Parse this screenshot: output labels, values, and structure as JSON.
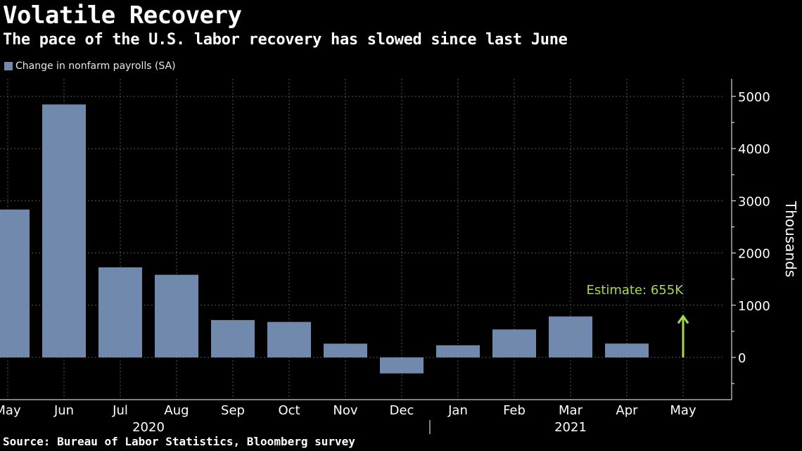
{
  "title": "Volatile Recovery",
  "subtitle": "The pace of the U.S. labor recovery has slowed since last June",
  "source": "Source: Bureau of Labor Statistics, Bloomberg survey",
  "colors": {
    "bar": "#7189ac",
    "annotation": "#a6d854",
    "grid": "#555555",
    "background": "#000000"
  },
  "chart_data": {
    "type": "bar",
    "categories": [
      "May",
      "Jun",
      "Jul",
      "Aug",
      "Sep",
      "Oct",
      "Nov",
      "Dec",
      "Jan",
      "Feb",
      "Mar",
      "Apr",
      "May"
    ],
    "year_labels": [
      {
        "label": "2020",
        "under": [
          "May",
          "Oct"
        ]
      },
      {
        "label": "2021",
        "under": [
          "Jan",
          "May"
        ]
      }
    ],
    "series": [
      {
        "name": "Change in nonfarm payrolls (SA)",
        "values": [
          2833,
          4846,
          1726,
          1583,
          716,
          680,
          264,
          -306,
          233,
          536,
          785,
          266,
          null
        ]
      }
    ],
    "ylabel": "Thousands",
    "yticks": [
      0,
      1000,
      2000,
      3000,
      4000,
      5000
    ],
    "ylim": [
      -800,
      5300
    ],
    "grid": true,
    "legend_position": "top-left",
    "annotation": {
      "category_index": 12,
      "text": "Estimate: 655K",
      "value": 655
    }
  }
}
